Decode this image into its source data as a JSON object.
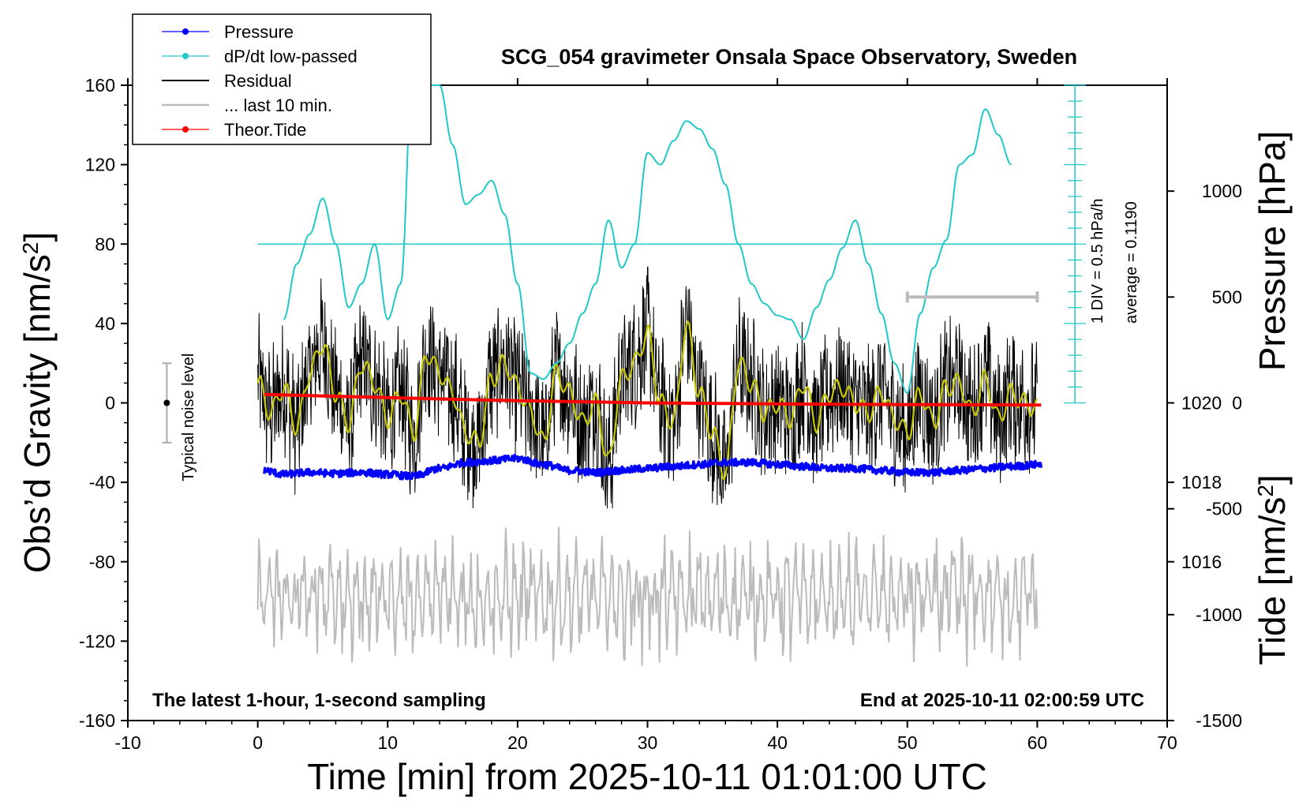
{
  "chart_data": {
    "type": "line",
    "title": "SCG_054 gravimeter Onsala Space Observatory, Sweden",
    "xlabel": "Time [min] from 2025-10-11 01:01:00 UTC",
    "ylabel_left": "Obs’d Gravity [nm/s",
    "ylabel_right_top": "Pressure [hPa]",
    "ylabel_right_bottom": "Tide [nm/s",
    "xlim": [
      -10,
      70
    ],
    "ylim": [
      -160,
      160
    ],
    "pressure_ylim": [
      1012,
      1028
    ],
    "tide_ylim": [
      -1500,
      1500
    ],
    "x_ticks": [
      "-10",
      "0",
      "10",
      "20",
      "30",
      "40",
      "50",
      "60",
      "70"
    ],
    "y_ticks": [
      "-160",
      "-120",
      "-80",
      "-40",
      "0",
      "40",
      "80",
      "120",
      "160"
    ],
    "pressure_ticks": [
      "1016",
      "1018",
      "1020"
    ],
    "tide_ticks": [
      "-1500",
      "-1000",
      "-500",
      "0",
      "500",
      "1000"
    ],
    "legend": [
      {
        "label": "Pressure",
        "color": "#0000ff",
        "marker": true
      },
      {
        "label": "dP/dt low-passed",
        "color": "#22c8c8",
        "marker": true
      },
      {
        "label": "Residual",
        "color": "#000000",
        "marker": false
      },
      {
        "label": "... last 10 min.",
        "color": "#bbbbbb",
        "marker": false
      },
      {
        "label": "Theor.Tide",
        "color": "#ff0000",
        "marker": true
      }
    ],
    "noise_label": "Typical noise level",
    "noise_bar": {
      "x": -7,
      "y": 0,
      "range": [
        -20,
        20
      ]
    },
    "div_label": "1 DIV = 0.5 hPa/h",
    "avg_label": "average = 0.1190",
    "note_left": "The latest 1-hour, 1-second sampling",
    "note_right": "End at 2025-10-11 02:00:59 UTC",
    "last10_bar": {
      "x_range": [
        50,
        60
      ],
      "tide_value": 500
    },
    "series": [
      {
        "name": "Pressure",
        "axis": "pressure",
        "color": "#0000ff",
        "x": [
          0.5,
          2,
          4,
          6,
          8,
          10,
          12,
          14,
          16,
          18,
          20,
          22,
          24,
          26,
          28,
          30,
          32,
          34,
          36,
          38,
          40,
          42,
          44,
          46,
          48,
          50,
          52,
          54,
          56,
          58,
          60.3
        ],
        "y": [
          1018.3,
          1018.2,
          1018.25,
          1018.22,
          1018.25,
          1018.2,
          1018.15,
          1018.35,
          1018.5,
          1018.55,
          1018.6,
          1018.45,
          1018.3,
          1018.25,
          1018.3,
          1018.35,
          1018.4,
          1018.45,
          1018.5,
          1018.5,
          1018.45,
          1018.4,
          1018.35,
          1018.35,
          1018.3,
          1018.25,
          1018.25,
          1018.3,
          1018.35,
          1018.4,
          1018.45
        ]
      },
      {
        "name": "dP/dt low-passed",
        "axis": "dpdt",
        "color": "#22c8c8",
        "x": [
          2,
          3,
          4,
          5,
          6,
          7,
          8,
          9,
          10,
          11,
          12,
          13,
          14,
          15,
          16,
          17,
          18,
          19,
          20,
          21,
          22,
          23,
          24,
          25,
          26,
          27,
          28,
          29,
          30,
          31,
          32,
          33,
          34,
          35,
          36,
          37,
          38,
          39,
          40,
          41,
          42,
          43,
          44,
          45,
          46,
          47,
          48,
          49,
          50,
          51,
          52,
          53,
          54,
          55,
          56,
          57,
          58
        ],
        "y": [
          42,
          70,
          85,
          103,
          80,
          48,
          60,
          80,
          42,
          60,
          180,
          170,
          160,
          130,
          100,
          105,
          112,
          95,
          60,
          15,
          12,
          20,
          30,
          45,
          60,
          92,
          68,
          80,
          126,
          120,
          132,
          142,
          138,
          128,
          110,
          80,
          60,
          50,
          44,
          42,
          32,
          48,
          62,
          78,
          92,
          70,
          45,
          20,
          5,
          45,
          68,
          82,
          120,
          125,
          148,
          135,
          120
        ]
      },
      {
        "name": "Residual smoothed",
        "axis": "gravity",
        "color": "#c8c800",
        "x": [
          0,
          1,
          2,
          3,
          4,
          5,
          6,
          7,
          8,
          9,
          10,
          11,
          12,
          13,
          14,
          15,
          16,
          17,
          18,
          19,
          20,
          21,
          22,
          23,
          24,
          25,
          26,
          27,
          28,
          29,
          30,
          31,
          32,
          33,
          34,
          35,
          36,
          37,
          38,
          39,
          40,
          41,
          42,
          43,
          44,
          45,
          46,
          47,
          48,
          49,
          50,
          51,
          52,
          53,
          54,
          55,
          56,
          57,
          58,
          59,
          60
        ],
        "y": [
          10,
          -5,
          8,
          -12,
          15,
          30,
          5,
          -10,
          20,
          10,
          -8,
          5,
          -15,
          25,
          15,
          5,
          -15,
          -20,
          12,
          20,
          8,
          -5,
          -20,
          15,
          5,
          -10,
          0,
          -30,
          12,
          20,
          35,
          0,
          -10,
          38,
          5,
          -15,
          -35,
          20,
          10,
          -5,
          0,
          -8,
          10,
          -10,
          5,
          8,
          0,
          -5,
          6,
          -8,
          -15,
          5,
          -10,
          8,
          10,
          -5,
          12,
          -8,
          5,
          0,
          -3
        ]
      },
      {
        "name": "Theor.Tide",
        "axis": "tide",
        "color": "#ff0000",
        "x": [
          0.5,
          10,
          20,
          30,
          40,
          50,
          60.3
        ],
        "y": [
          40,
          25,
          10,
          0,
          -5,
          -8,
          -10
        ]
      }
    ]
  }
}
